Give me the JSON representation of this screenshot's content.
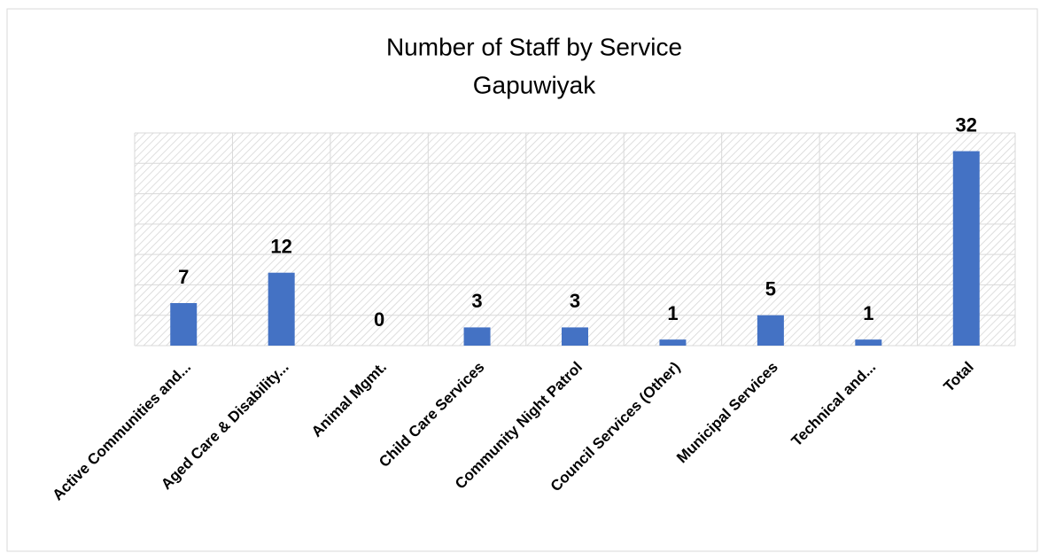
{
  "chart_data": {
    "type": "bar",
    "title": "Number of Staff by Service",
    "subtitle": "Gapuwiyak",
    "categories": [
      "Active Communities and...",
      "Aged Care & Disability...",
      "Animal Mgmt.",
      "Child Care Services",
      "Community Night Patrol",
      "Council Services (Other)",
      "Municipal Services",
      "Technical and...",
      "Total"
    ],
    "values": [
      7,
      12,
      0,
      3,
      3,
      1,
      5,
      1,
      32
    ],
    "color": "#4472c4",
    "ylim": [
      0,
      35
    ],
    "yticks": [
      0,
      5,
      10,
      15,
      20,
      25,
      30,
      35
    ],
    "grid": true
  }
}
